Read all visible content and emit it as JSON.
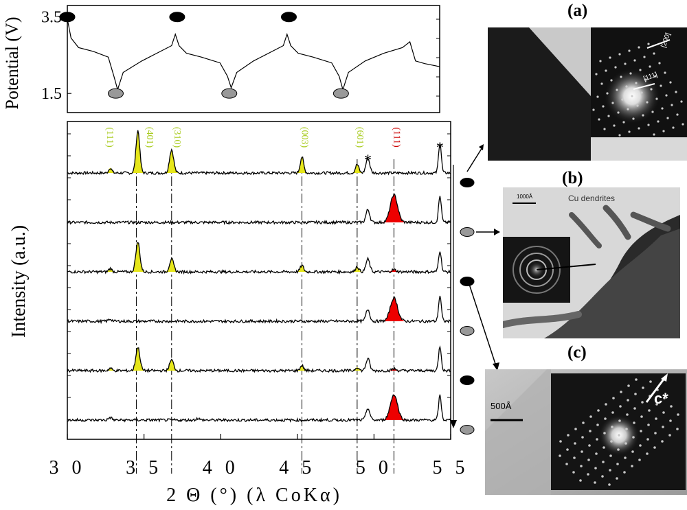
{
  "chart_data": [
    {
      "type": "line",
      "title": "",
      "ylabel": "Potential (V)",
      "xlabel": "",
      "ylim": [
        1.0,
        3.8
      ],
      "ytick_labels": [
        "3.5",
        "1.5"
      ],
      "ytick_values": [
        3.5,
        1.5
      ],
      "cycle_markers": [
        {
          "state": "charged",
          "color": "#000000",
          "t": 0.0,
          "v": 3.5
        },
        {
          "state": "discharged",
          "color": "#999999",
          "t": 0.13,
          "v": 1.5
        },
        {
          "state": "charged",
          "color": "#000000",
          "t": 0.295,
          "v": 3.5
        },
        {
          "state": "discharged",
          "color": "#999999",
          "t": 0.435,
          "v": 1.5
        },
        {
          "state": "charged",
          "color": "#000000",
          "t": 0.595,
          "v": 3.5
        },
        {
          "state": "discharged",
          "color": "#999999",
          "t": 0.735,
          "v": 1.5
        }
      ],
      "series": [
        {
          "t": [
            0.0,
            0.01,
            0.03,
            0.07,
            0.11,
            0.125,
            0.135,
            0.15,
            0.2,
            0.25,
            0.28,
            0.29,
            0.3,
            0.32,
            0.36,
            0.41,
            0.43,
            0.44,
            0.455,
            0.5,
            0.55,
            0.58,
            0.59,
            0.6,
            0.62,
            0.66,
            0.71,
            0.73,
            0.74,
            0.755,
            0.8,
            0.85,
            0.9,
            0.92,
            0.935,
            0.96,
            1.0
          ],
          "v": [
            3.45,
            2.95,
            2.7,
            2.6,
            2.45,
            1.95,
            1.6,
            2.05,
            2.35,
            2.6,
            2.75,
            3.05,
            2.75,
            2.55,
            2.45,
            2.3,
            1.95,
            1.65,
            2.05,
            2.35,
            2.6,
            2.75,
            3.05,
            2.75,
            2.55,
            2.45,
            2.3,
            1.95,
            1.6,
            2.05,
            2.35,
            2.55,
            2.7,
            2.85,
            2.35,
            2.28,
            2.2
          ]
        }
      ]
    },
    {
      "type": "line",
      "title": "",
      "xlabel": "2 Θ (°) (λ CoKα)",
      "ylabel": "Intensity (a.u.)",
      "xlim": [
        30,
        55
      ],
      "xticks": [
        30,
        35,
        40,
        45,
        50,
        55
      ],
      "xtick_labels": [
        "3 0",
        "3 5",
        "4 0",
        "4 5",
        "5 0",
        "5 5"
      ],
      "reference_lines": [
        34.5,
        36.8,
        45.3,
        48.9,
        51.3
      ],
      "peak_labels": [
        {
          "text": "(111)",
          "x": 32.6,
          "color": "#aacc22"
        },
        {
          "text": "(401)",
          "x": 35.2,
          "color": "#aacc22"
        },
        {
          "text": "(310)",
          "x": 37.0,
          "color": "#aacc22"
        },
        {
          "text": "(003)",
          "x": 45.3,
          "color": "#aacc22"
        },
        {
          "text": "(601)",
          "x": 48.9,
          "color": "#aacc22"
        },
        {
          "text": "(111)",
          "x": 51.3,
          "color": "#cc0000"
        }
      ],
      "asterisks": [
        {
          "text": "*",
          "x": 49.6
        },
        {
          "text": "*",
          "x": 54.3
        }
      ],
      "fill_colors": {
        "precursor": "#e6e61a",
        "copper": "#ee0000"
      },
      "state_marker_colors": {
        "charged": "#000000",
        "discharged": "#999999"
      },
      "traces": [
        {
          "state": "charged",
          "peaks": [
            {
              "x": 32.8,
              "h": 0.12,
              "w": 0.18,
              "fill": "precursor"
            },
            {
              "x": 34.6,
              "h": 1.0,
              "w": 0.22,
              "fill": "precursor"
            },
            {
              "x": 36.8,
              "h": 0.55,
              "w": 0.24,
              "fill": "precursor"
            },
            {
              "x": 45.3,
              "h": 0.38,
              "w": 0.2,
              "fill": "precursor"
            },
            {
              "x": 48.9,
              "h": 0.2,
              "w": 0.2,
              "fill": "precursor"
            },
            {
              "x": 49.6,
              "h": 0.35,
              "w": 0.22,
              "fill": ""
            },
            {
              "x": 54.3,
              "h": 0.72,
              "w": 0.16,
              "fill": ""
            }
          ]
        },
        {
          "state": "discharged",
          "peaks": [
            {
              "x": 49.6,
              "h": 0.3,
              "w": 0.22,
              "fill": ""
            },
            {
              "x": 51.3,
              "h": 0.65,
              "w": 0.42,
              "fill": "copper"
            },
            {
              "x": 54.3,
              "h": 0.62,
              "w": 0.16,
              "fill": ""
            }
          ]
        },
        {
          "state": "charged",
          "peaks": [
            {
              "x": 32.8,
              "h": 0.08,
              "w": 0.18,
              "fill": "precursor"
            },
            {
              "x": 34.6,
              "h": 0.7,
              "w": 0.24,
              "fill": "precursor"
            },
            {
              "x": 36.8,
              "h": 0.3,
              "w": 0.24,
              "fill": "precursor"
            },
            {
              "x": 45.3,
              "h": 0.15,
              "w": 0.2,
              "fill": "precursor"
            },
            {
              "x": 48.9,
              "h": 0.12,
              "w": 0.2,
              "fill": "precursor"
            },
            {
              "x": 49.6,
              "h": 0.3,
              "w": 0.22,
              "fill": ""
            },
            {
              "x": 51.3,
              "h": 0.05,
              "w": 0.25,
              "fill": "copper"
            },
            {
              "x": 54.3,
              "h": 0.5,
              "w": 0.16,
              "fill": ""
            }
          ]
        },
        {
          "state": "discharged",
          "peaks": [
            {
              "x": 32.8,
              "h": 0.05,
              "w": 0.2,
              "fill": ""
            },
            {
              "x": 49.6,
              "h": 0.28,
              "w": 0.22,
              "fill": ""
            },
            {
              "x": 51.3,
              "h": 0.55,
              "w": 0.42,
              "fill": "copper"
            },
            {
              "x": 54.3,
              "h": 0.6,
              "w": 0.16,
              "fill": ""
            }
          ]
        },
        {
          "state": "charged",
          "peaks": [
            {
              "x": 32.8,
              "h": 0.06,
              "w": 0.18,
              "fill": "precursor"
            },
            {
              "x": 34.6,
              "h": 0.55,
              "w": 0.24,
              "fill": "precursor"
            },
            {
              "x": 36.8,
              "h": 0.25,
              "w": 0.24,
              "fill": "precursor"
            },
            {
              "x": 45.3,
              "h": 0.12,
              "w": 0.2,
              "fill": "precursor"
            },
            {
              "x": 48.9,
              "h": 0.08,
              "w": 0.2,
              "fill": "precursor"
            },
            {
              "x": 49.6,
              "h": 0.28,
              "w": 0.22,
              "fill": ""
            },
            {
              "x": 51.3,
              "h": 0.04,
              "w": 0.25,
              "fill": "copper"
            },
            {
              "x": 54.3,
              "h": 0.58,
              "w": 0.16,
              "fill": ""
            }
          ]
        },
        {
          "state": "discharged",
          "peaks": [
            {
              "x": 32.8,
              "h": 0.06,
              "w": 0.2,
              "fill": ""
            },
            {
              "x": 38.5,
              "h": 0.04,
              "w": 0.2,
              "fill": ""
            },
            {
              "x": 49.6,
              "h": 0.28,
              "w": 0.22,
              "fill": ""
            },
            {
              "x": 51.3,
              "h": 0.6,
              "w": 0.42,
              "fill": "copper"
            },
            {
              "x": 54.3,
              "h": 0.58,
              "w": 0.16,
              "fill": ""
            }
          ]
        }
      ]
    }
  ],
  "panels": {
    "a": {
      "label": "(a)",
      "spot_labels": [
        "[200]",
        "[111]"
      ]
    },
    "b": {
      "label": "(b)",
      "scale_text": "1000Å",
      "caption": "Cu dendrites"
    },
    "c": {
      "label": "(c)",
      "scale_text": "500Å",
      "axis_label": "c*"
    }
  }
}
